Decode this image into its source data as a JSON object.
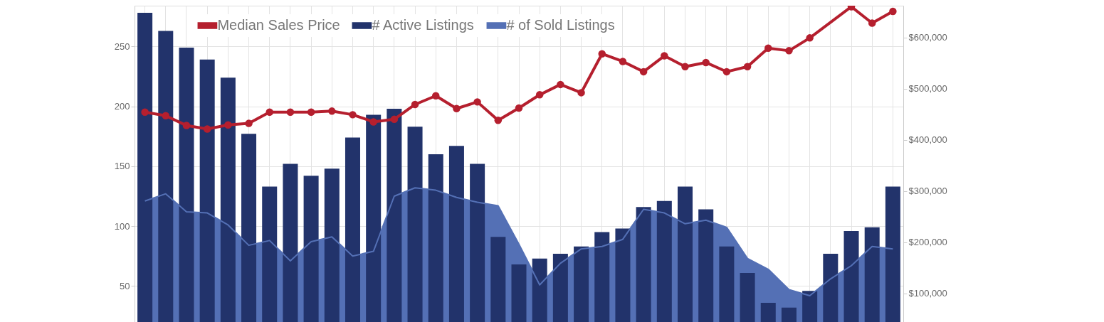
{
  "chart_data": {
    "type": "bar",
    "categories": [
      null,
      null,
      null,
      null,
      null,
      null,
      null,
      null,
      null,
      null,
      null,
      null,
      null,
      null,
      null,
      null,
      null,
      null,
      null,
      null,
      null,
      null,
      null,
      null,
      null,
      null,
      null,
      null,
      null,
      null,
      null,
      null,
      null,
      null,
      null,
      null,
      null
    ],
    "series": [
      {
        "name": "Median Sales Price",
        "type": "line",
        "axis": "y2",
        "color": "#b51f2e",
        "marker": "circle",
        "values": [
          454000,
          447000,
          428000,
          421000,
          429000,
          432000,
          454000,
          454000,
          454000,
          456000,
          449000,
          435000,
          440000,
          469000,
          486000,
          461000,
          474000,
          438000,
          462000,
          488000,
          508000,
          492000,
          568000,
          553000,
          533000,
          564000,
          543000,
          551000,
          533000,
          543000,
          579000,
          574000,
          599000,
          null,
          660000,
          628000,
          651000
        ]
      },
      {
        "name": "# Active Listings",
        "color": "#22336b",
        "values": [
          278,
          263,
          249,
          239,
          224,
          177,
          133,
          152,
          142,
          148,
          174,
          193,
          198,
          183,
          160,
          167,
          152,
          91,
          68,
          73,
          77,
          83,
          95,
          98,
          116,
          121,
          133,
          114,
          83,
          61,
          36,
          32,
          46,
          77,
          96,
          99,
          133
        ]
      },
      {
        "name": "# of Sold Listings",
        "type": "area",
        "color": "#5470b5",
        "values": [
          121,
          127,
          112,
          111,
          101,
          84,
          88,
          71,
          87,
          91,
          75,
          79,
          125,
          132,
          130,
          124,
          120,
          117,
          85,
          51,
          69,
          81,
          83,
          89,
          114,
          111,
          102,
          105,
          99,
          73,
          64,
          47,
          42,
          56,
          67,
          83,
          81
        ]
      }
    ],
    "ylim": [
      20,
      284
    ],
    "yticks": [
      50,
      100,
      150,
      200,
      250
    ],
    "y2lim": [
      44000,
      662000
    ],
    "y2ticks": [
      {
        "value": 100000,
        "label": "$100,000"
      },
      {
        "value": 200000,
        "label": "$200,000"
      },
      {
        "value": 300000,
        "label": "$300,000"
      },
      {
        "value": 400000,
        "label": "$400,000"
      },
      {
        "value": 500000,
        "label": "$500,000"
      },
      {
        "value": 600000,
        "label": "$600,000"
      }
    ],
    "grid": true,
    "legend": "top",
    "tick_labels": "y"
  }
}
